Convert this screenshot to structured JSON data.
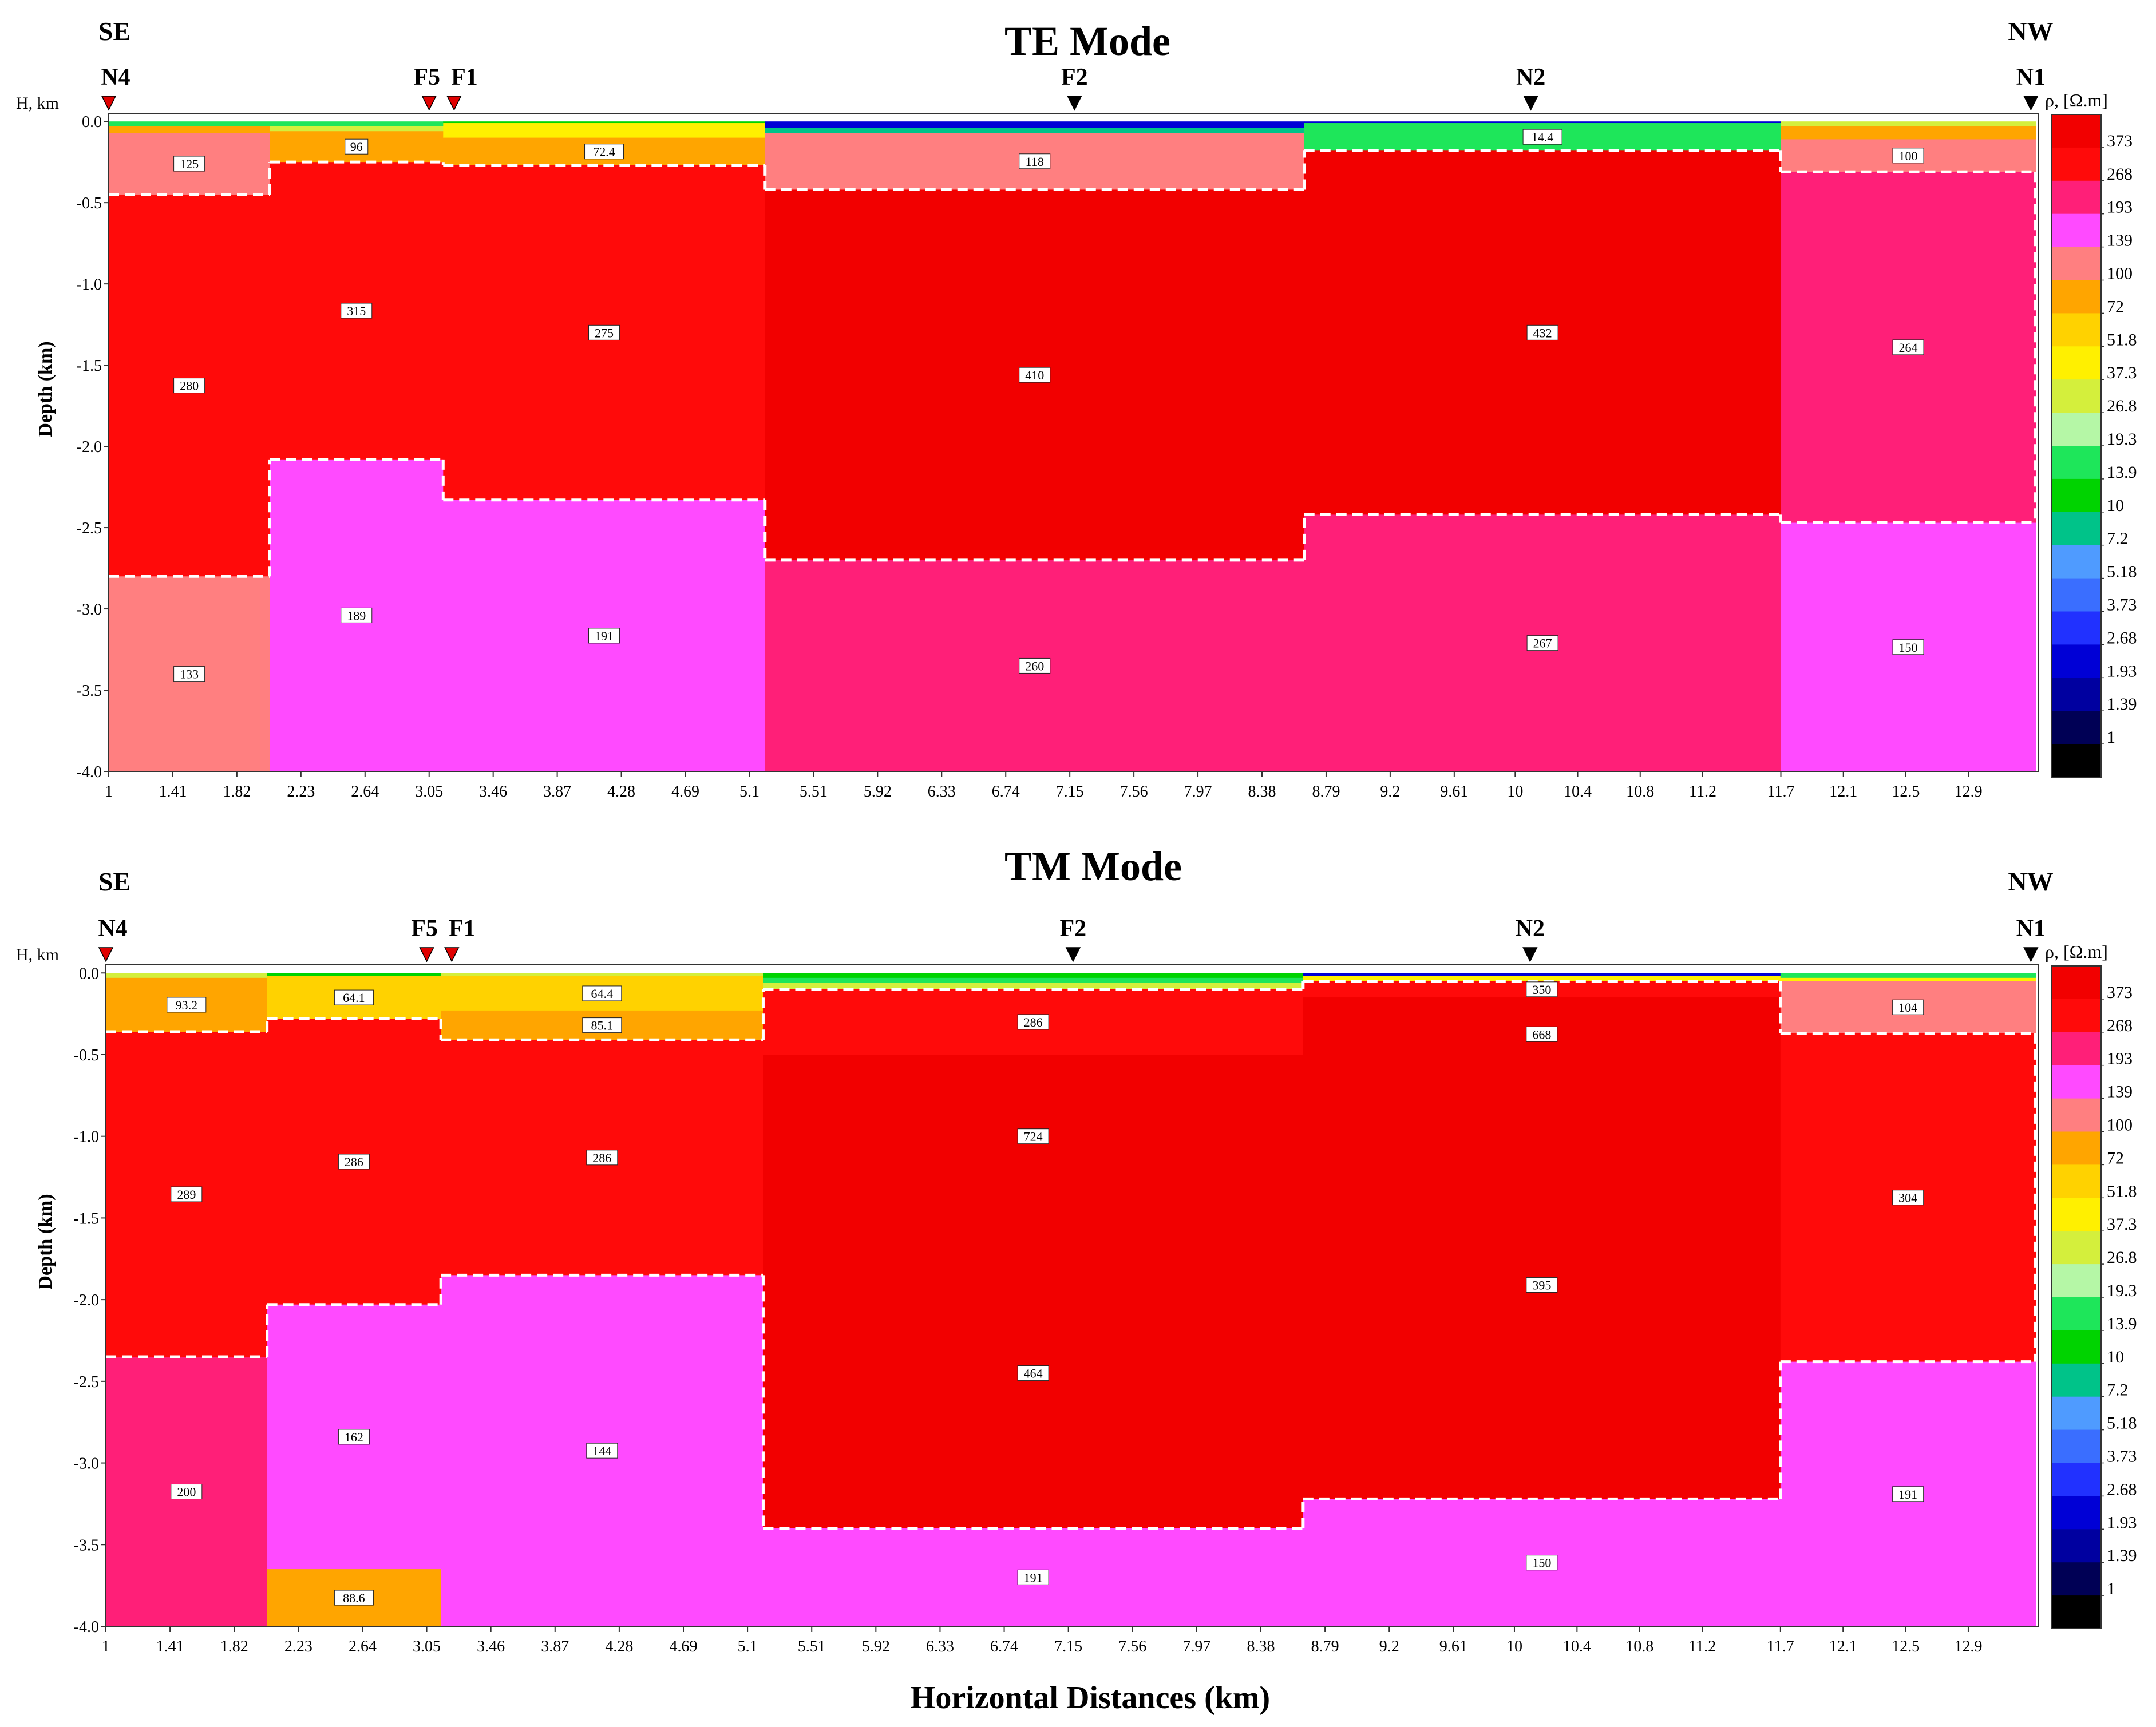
{
  "figure": {
    "xlabel": "Horizontal Distances (km)",
    "ylabel": "Depth (km)",
    "h_label": "H, km",
    "direction_left": "SE",
    "direction_right": "NW",
    "colorbar_title": "ρ, [Ω.m]"
  },
  "colorbar": {
    "labels": [
      "373",
      "268",
      "193",
      "139",
      "100",
      "72",
      "51.8",
      "37.3",
      "26.8",
      "19.3",
      "13.9",
      "10",
      "7.2",
      "5.18",
      "3.73",
      "2.68",
      "1.93",
      "1.39",
      "1"
    ],
    "colors": [
      "#f20000",
      "#ff0a0a",
      "#ff1f78",
      "#ff4aff",
      "#ff7f80",
      "#ffa500",
      "#ffd200",
      "#fff000",
      "#d4ef3c",
      "#b5f7a6",
      "#1ee65a",
      "#00d300",
      "#00c389",
      "#4f9bff",
      "#3a6eff",
      "#2131ff",
      "#0000d6",
      "#0000a0",
      "#000055",
      "#000000"
    ]
  },
  "chart_data": [
    {
      "type": "heatmap",
      "title": "TE Mode",
      "xlabel": "Horizontal Distances (km)",
      "ylabel": "Depth (km)",
      "xlim": [
        1,
        13.35
      ],
      "ylim": [
        -4.0,
        0.05
      ],
      "x_ticks": [
        "1",
        "1.41",
        "1.82",
        "2.23",
        "2.64",
        "3.05",
        "3.46",
        "3.87",
        "4.28",
        "4.69",
        "5.1",
        "5.51",
        "5.92",
        "6.33",
        "6.74",
        "7.15",
        "7.56",
        "7.97",
        "8.38",
        "8.79",
        "9.2",
        "9.61",
        "10",
        "10.4",
        "10.8",
        "11.2",
        "11.7",
        "12.1",
        "12.5",
        "12.9"
      ],
      "y_ticks": [
        "0.0",
        "-0.5",
        "-1.0",
        "-1.5",
        "-2.0",
        "-2.5",
        "-3.0",
        "-3.5",
        "-4.0"
      ],
      "stations": [
        {
          "name": "N4",
          "x": 1.0,
          "color": "red"
        },
        {
          "name": "F5",
          "x": 3.05,
          "color": "red"
        },
        {
          "name": "F1",
          "x": 3.21,
          "color": "red"
        },
        {
          "name": "F2",
          "x": 7.18,
          "color": "black"
        },
        {
          "name": "N2",
          "x": 10.1,
          "color": "black"
        },
        {
          "name": "N1",
          "x": 13.3,
          "color": "black"
        }
      ],
      "columns": [
        {
          "x0": 1.0,
          "x1": 2.03,
          "layers": [
            {
              "top": 0.0,
              "bottom": -0.03,
              "resistivity": 13.9,
              "label": ""
            },
            {
              "top": -0.03,
              "bottom": -0.07,
              "resistivity": 72,
              "label": ""
            },
            {
              "top": -0.07,
              "bottom": -0.45,
              "resistivity": 125,
              "label": "125"
            },
            {
              "top": -0.45,
              "bottom": -2.8,
              "resistivity": 280,
              "label": "280"
            },
            {
              "top": -2.8,
              "bottom": -4.0,
              "resistivity": 133,
              "label": "133"
            }
          ]
        },
        {
          "x0": 2.03,
          "x1": 3.14,
          "layers": [
            {
              "top": 0.0,
              "bottom": -0.03,
              "resistivity": 13.9,
              "label": ""
            },
            {
              "top": -0.03,
              "bottom": -0.06,
              "resistivity": 26.8,
              "label": ""
            },
            {
              "top": -0.06,
              "bottom": -0.25,
              "resistivity": 96,
              "label": "96"
            },
            {
              "top": -0.25,
              "bottom": -2.08,
              "resistivity": 315,
              "label": "315"
            },
            {
              "top": -2.08,
              "bottom": -4.0,
              "resistivity": 189,
              "label": "189"
            }
          ]
        },
        {
          "x0": 3.14,
          "x1": 5.2,
          "layers": [
            {
              "top": 0.0,
              "bottom": -0.01,
              "resistivity": 10,
              "label": ""
            },
            {
              "top": -0.01,
              "bottom": -0.1,
              "resistivity": 37.3,
              "label": ""
            },
            {
              "top": -0.1,
              "bottom": -0.27,
              "resistivity": 72.4,
              "label": "72.4"
            },
            {
              "top": -0.27,
              "bottom": -2.33,
              "resistivity": 275,
              "label": "275"
            },
            {
              "top": -2.33,
              "bottom": -4.0,
              "resistivity": 191,
              "label": "191"
            }
          ]
        },
        {
          "x0": 5.2,
          "x1": 8.65,
          "layers": [
            {
              "top": 0.0,
              "bottom": -0.04,
              "resistivity": 1.93,
              "label": ""
            },
            {
              "top": -0.04,
              "bottom": -0.07,
              "resistivity": 7.2,
              "label": ""
            },
            {
              "top": -0.07,
              "bottom": -0.42,
              "resistivity": 118,
              "label": "118"
            },
            {
              "top": -0.42,
              "bottom": -2.7,
              "resistivity": 410,
              "label": "410"
            },
            {
              "top": -2.7,
              "bottom": -4.0,
              "resistivity": 260,
              "label": "260"
            }
          ]
        },
        {
          "x0": 8.65,
          "x1": 11.7,
          "layers": [
            {
              "top": 0.0,
              "bottom": -0.01,
              "resistivity": 1.93,
              "label": ""
            },
            {
              "top": -0.01,
              "bottom": -0.18,
              "resistivity": 14.4,
              "label": "14.4"
            },
            {
              "top": -0.18,
              "bottom": -2.42,
              "resistivity": 432,
              "label": "432"
            },
            {
              "top": -2.42,
              "bottom": -4.0,
              "resistivity": 267,
              "label": "267"
            }
          ]
        },
        {
          "x0": 11.7,
          "x1": 13.33,
          "layers": [
            {
              "top": 0.0,
              "bottom": -0.03,
              "resistivity": 26.8,
              "label": ""
            },
            {
              "top": -0.03,
              "bottom": -0.11,
              "resistivity": 72,
              "label": ""
            },
            {
              "top": -0.11,
              "bottom": -0.31,
              "resistivity": 100,
              "label": "100"
            },
            {
              "top": -0.31,
              "bottom": -2.47,
              "resistivity": 264,
              "label": "264"
            },
            {
              "top": -2.47,
              "bottom": -4.0,
              "resistivity": 150,
              "label": "150"
            }
          ]
        }
      ]
    },
    {
      "type": "heatmap",
      "title": "TM Mode",
      "xlabel": "Horizontal Distances (km)",
      "ylabel": "Depth (km)",
      "xlim": [
        1,
        13.35
      ],
      "ylim": [
        -4.0,
        0.05
      ],
      "x_ticks": [
        "1",
        "1.41",
        "1.82",
        "2.23",
        "2.64",
        "3.05",
        "3.46",
        "3.87",
        "4.28",
        "4.69",
        "5.1",
        "5.51",
        "5.92",
        "6.33",
        "6.74",
        "7.15",
        "7.56",
        "7.97",
        "8.38",
        "8.79",
        "9.2",
        "9.61",
        "10",
        "10.4",
        "10.8",
        "11.2",
        "11.7",
        "12.1",
        "12.5",
        "12.9"
      ],
      "y_ticks": [
        "0.0",
        "-0.5",
        "-1.0",
        "-1.5",
        "-2.0",
        "-2.5",
        "-3.0",
        "-3.5",
        "-4.0"
      ],
      "stations": [
        {
          "name": "N4",
          "x": 1.0,
          "color": "red"
        },
        {
          "name": "F5",
          "x": 3.05,
          "color": "red"
        },
        {
          "name": "F1",
          "x": 3.21,
          "color": "red"
        },
        {
          "name": "F2",
          "x": 7.18,
          "color": "black"
        },
        {
          "name": "N2",
          "x": 10.1,
          "color": "black"
        },
        {
          "name": "N1",
          "x": 13.3,
          "color": "black"
        }
      ],
      "columns": [
        {
          "x0": 1.0,
          "x1": 2.03,
          "layers": [
            {
              "top": 0.0,
              "bottom": -0.03,
              "resistivity": 26.8,
              "label": ""
            },
            {
              "top": -0.03,
              "bottom": -0.36,
              "resistivity": 93.2,
              "label": "93.2"
            },
            {
              "top": -0.36,
              "bottom": -2.35,
              "resistivity": 289,
              "label": "289"
            },
            {
              "top": -2.35,
              "bottom": -4.0,
              "resistivity": 200,
              "label": "200"
            }
          ]
        },
        {
          "x0": 2.03,
          "x1": 3.14,
          "layers": [
            {
              "top": 0.0,
              "bottom": -0.02,
              "resistivity": 10,
              "label": ""
            },
            {
              "top": -0.02,
              "bottom": -0.28,
              "resistivity": 64.1,
              "label": "64.1"
            },
            {
              "top": -0.28,
              "bottom": -2.03,
              "resistivity": 286,
              "label": "286"
            },
            {
              "top": -2.03,
              "bottom": -3.65,
              "resistivity": 162,
              "label": "162"
            },
            {
              "top": -3.65,
              "bottom": -4.0,
              "resistivity": 88.6,
              "label": "88.6"
            }
          ]
        },
        {
          "x0": 3.14,
          "x1": 5.2,
          "layers": [
            {
              "top": 0.0,
              "bottom": -0.02,
              "resistivity": 26.8,
              "label": ""
            },
            {
              "top": -0.02,
              "bottom": -0.23,
              "resistivity": 64.4,
              "label": "64.4"
            },
            {
              "top": -0.23,
              "bottom": -0.41,
              "resistivity": 85.1,
              "label": "85.1"
            },
            {
              "top": -0.41,
              "bottom": -1.85,
              "resistivity": 286,
              "label": "286"
            },
            {
              "top": -1.85,
              "bottom": -4.0,
              "resistivity": 144,
              "label": "144"
            }
          ]
        },
        {
          "x0": 5.2,
          "x1": 8.65,
          "layers": [
            {
              "top": 0.0,
              "bottom": -0.03,
              "resistivity": 10,
              "label": ""
            },
            {
              "top": -0.03,
              "bottom": -0.06,
              "resistivity": 13.9,
              "label": ""
            },
            {
              "top": -0.06,
              "bottom": -0.1,
              "resistivity": 26.8,
              "label": ""
            },
            {
              "top": -0.1,
              "bottom": -0.5,
              "resistivity": 286,
              "label": "286"
            },
            {
              "top": -0.5,
              "bottom": -1.5,
              "resistivity": 724,
              "label": "724"
            },
            {
              "top": -1.5,
              "bottom": -3.4,
              "resistivity": 464,
              "label": "464"
            },
            {
              "top": -3.4,
              "bottom": -4.0,
              "resistivity": 191,
              "label": "191"
            }
          ]
        },
        {
          "x0": 8.65,
          "x1": 11.7,
          "layers": [
            {
              "top": 0.0,
              "bottom": -0.02,
              "resistivity": 1.93,
              "label": ""
            },
            {
              "top": -0.02,
              "bottom": -0.05,
              "resistivity": 37.3,
              "label": ""
            },
            {
              "top": -0.05,
              "bottom": -0.15,
              "resistivity": 350,
              "label": "350"
            },
            {
              "top": -0.15,
              "bottom": -0.6,
              "resistivity": 668,
              "label": "668"
            },
            {
              "top": -0.6,
              "bottom": -3.22,
              "resistivity": 395,
              "label": "395"
            },
            {
              "top": -3.22,
              "bottom": -4.0,
              "resistivity": 150,
              "label": "150"
            }
          ]
        },
        {
          "x0": 11.7,
          "x1": 13.33,
          "layers": [
            {
              "top": 0.0,
              "bottom": -0.03,
              "resistivity": 13.9,
              "label": ""
            },
            {
              "top": -0.03,
              "bottom": -0.05,
              "resistivity": 37.3,
              "label": ""
            },
            {
              "top": -0.05,
              "bottom": -0.37,
              "resistivity": 104,
              "label": "104"
            },
            {
              "top": -0.37,
              "bottom": -2.38,
              "resistivity": 304,
              "label": "304"
            },
            {
              "top": -2.38,
              "bottom": -4.0,
              "resistivity": 191,
              "label": "191"
            }
          ]
        }
      ]
    }
  ]
}
